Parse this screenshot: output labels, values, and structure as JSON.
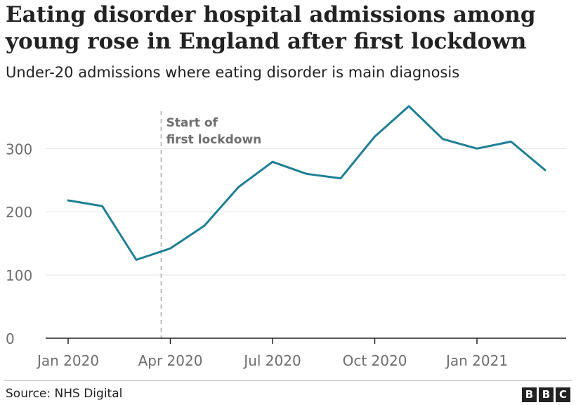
{
  "chart_data": {
    "type": "line",
    "title": "Eating disorder hospital admissions among young rose in England after first lockdown",
    "subtitle": "Under-20 admissions where eating disorder is main diagnosis",
    "x": [
      "2020-01",
      "2020-02",
      "2020-03",
      "2020-04",
      "2020-05",
      "2020-06",
      "2020-07",
      "2020-08",
      "2020-09",
      "2020-10",
      "2020-11",
      "2020-12",
      "2021-01",
      "2021-02",
      "2021-03"
    ],
    "series": [
      {
        "values": [
          218,
          209,
          124,
          142,
          178,
          239,
          279,
          260,
          253,
          319,
          367,
          315,
          300,
          311,
          266
        ]
      }
    ],
    "x_ticks": [
      "Jan 2020",
      "Apr 2020",
      "Jul 2020",
      "Oct 2020",
      "Jan 2021"
    ],
    "y_ticks": [
      "0",
      "100",
      "200",
      "300"
    ],
    "ylim": [
      0,
      380
    ],
    "grid": true,
    "annotation": {
      "lines": [
        "Start of",
        "first lockdown"
      ],
      "at": "2020-03-23"
    },
    "source": "Source: NHS Digital",
    "colors": {
      "line": "#1f7f96",
      "grid": "#e3e3e3",
      "axis": "#222222",
      "annotation_line": "#bdbdbd",
      "annotation_text": "#6e6e6e",
      "tick_text": "#6e6e6e"
    }
  },
  "footer": {
    "logo_letters": [
      "B",
      "B",
      "C"
    ]
  }
}
